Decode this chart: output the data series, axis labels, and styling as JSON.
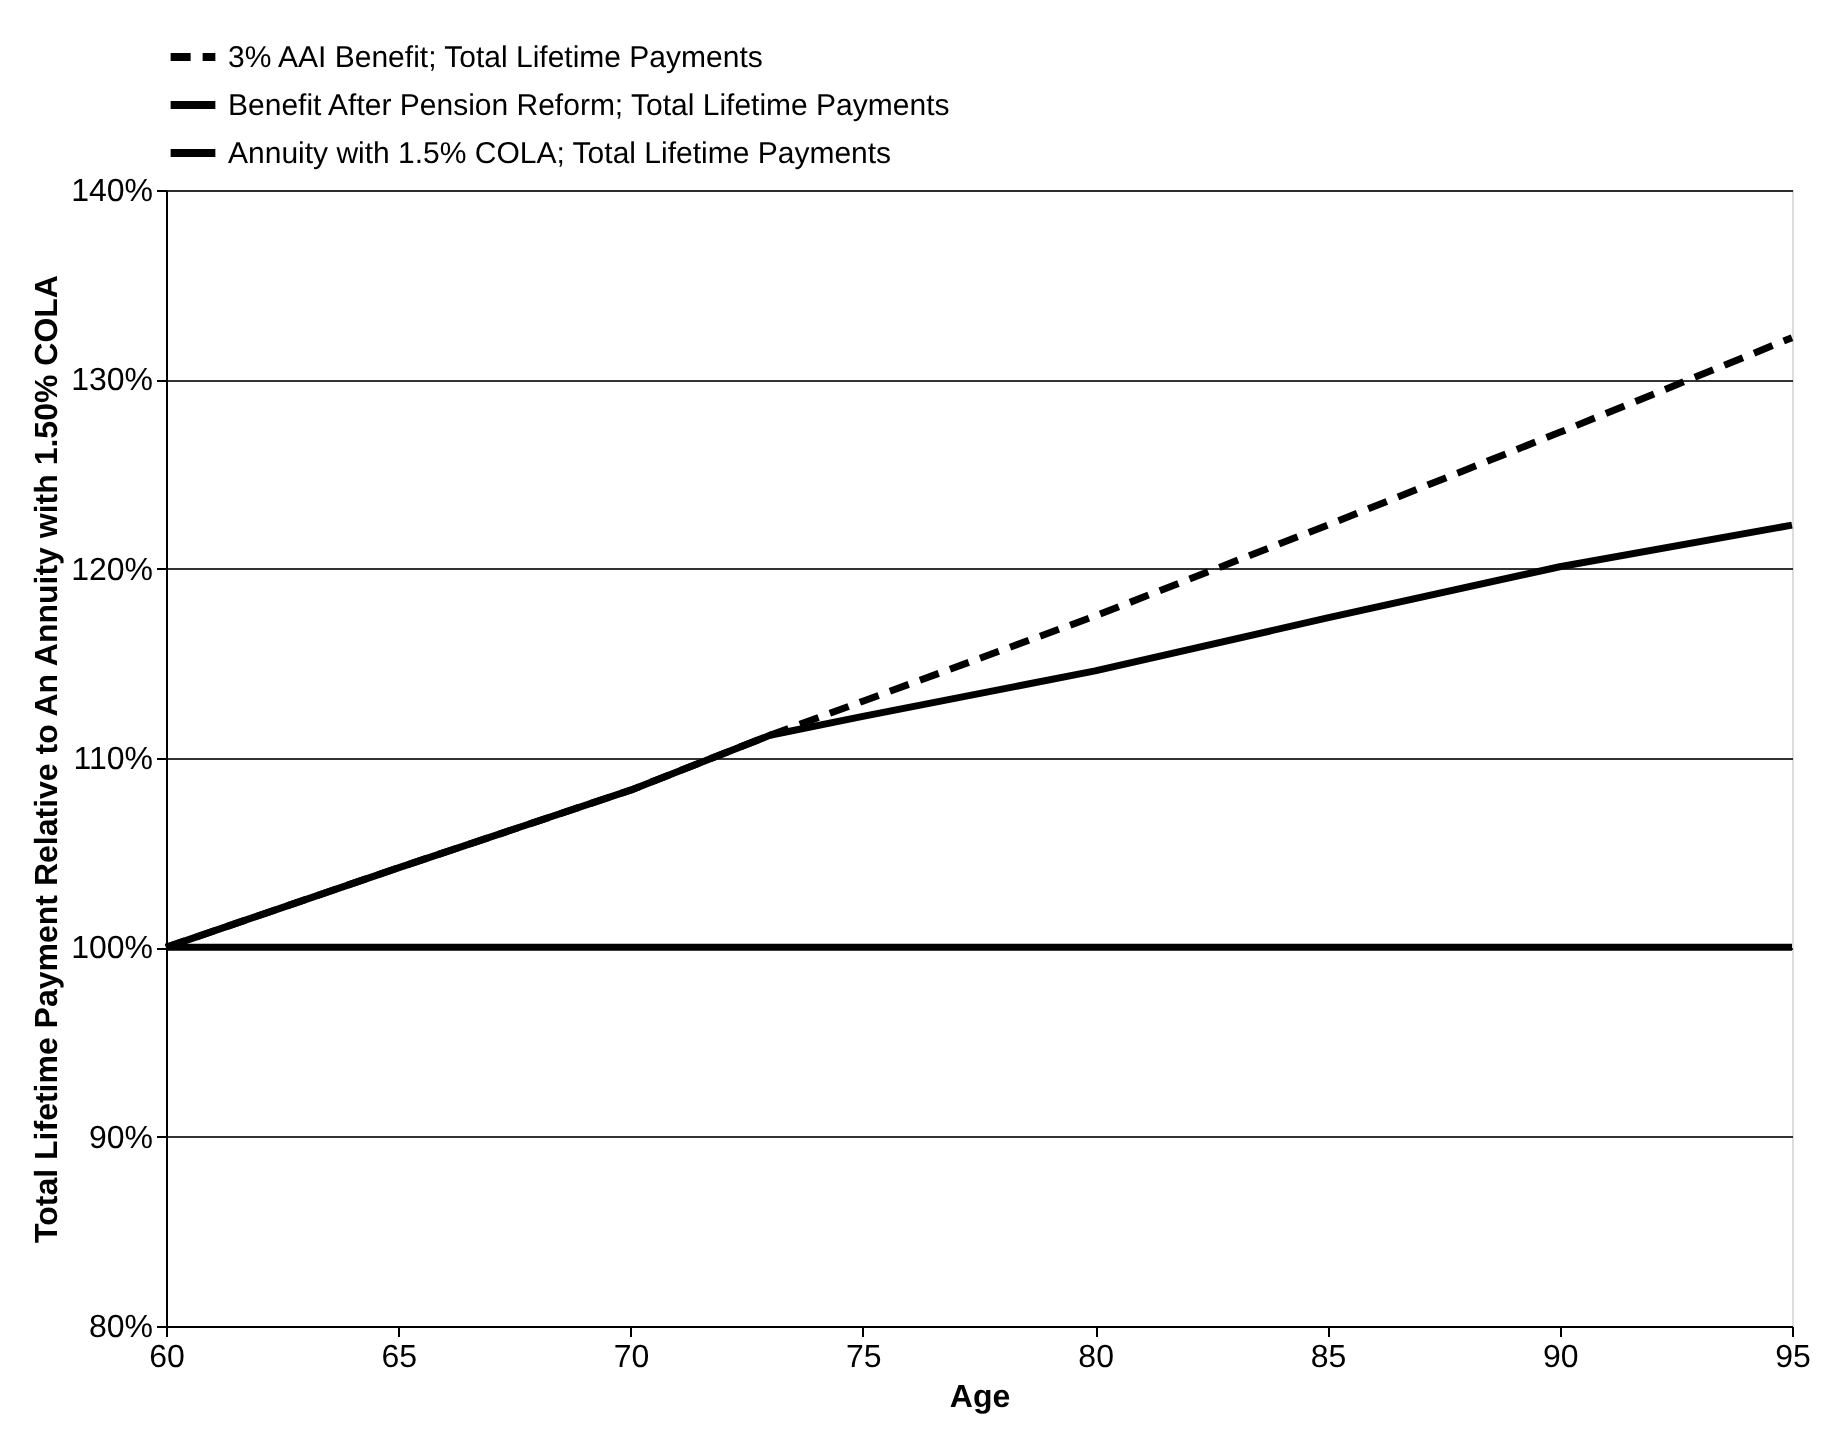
{
  "chart_data": {
    "type": "line",
    "xlabel": "Age",
    "ylabel": "Total Lifetime Payment Relative to An Annuity with 1.50% COLA",
    "x": [
      60,
      65,
      70,
      73,
      75,
      80,
      85,
      90,
      95
    ],
    "series": [
      {
        "name": "3% AAI Benefit; Total Lifetime Payments",
        "color": "#000000",
        "line_style": "dashed",
        "values": [
          100,
          104.2,
          108.3,
          111.2,
          113,
          117.5,
          122.3,
          127.2,
          132.2
        ]
      },
      {
        "name": "Benefit After Pension Reform; Total Lifetime Payments",
        "color": "#000000",
        "line_style": "solid",
        "values": [
          100,
          104.2,
          108.3,
          111.2,
          112.2,
          114.6,
          117.4,
          120.1,
          122.3
        ]
      },
      {
        "name": "Annuity with 1.5% COLA; Total Lifetime Payments",
        "color": "#000000",
        "line_style": "solid",
        "values": [
          100,
          100,
          100,
          100,
          100,
          100,
          100,
          100,
          100
        ]
      }
    ],
    "xlim": [
      60,
      95
    ],
    "xticks": [
      60,
      65,
      70,
      75,
      80,
      85,
      90,
      95
    ],
    "ylim": [
      80,
      140
    ],
    "yticks": [
      {
        "value": 80,
        "label": "80%"
      },
      {
        "value": 90,
        "label": "90%"
      },
      {
        "value": 100,
        "label": "100%"
      },
      {
        "value": 110,
        "label": "110%"
      },
      {
        "value": 120,
        "label": "120%"
      },
      {
        "value": 130,
        "label": "130%"
      },
      {
        "value": 140,
        "label": "140%"
      }
    ],
    "grid": "y",
    "legend": "top",
    "marker": "none"
  }
}
